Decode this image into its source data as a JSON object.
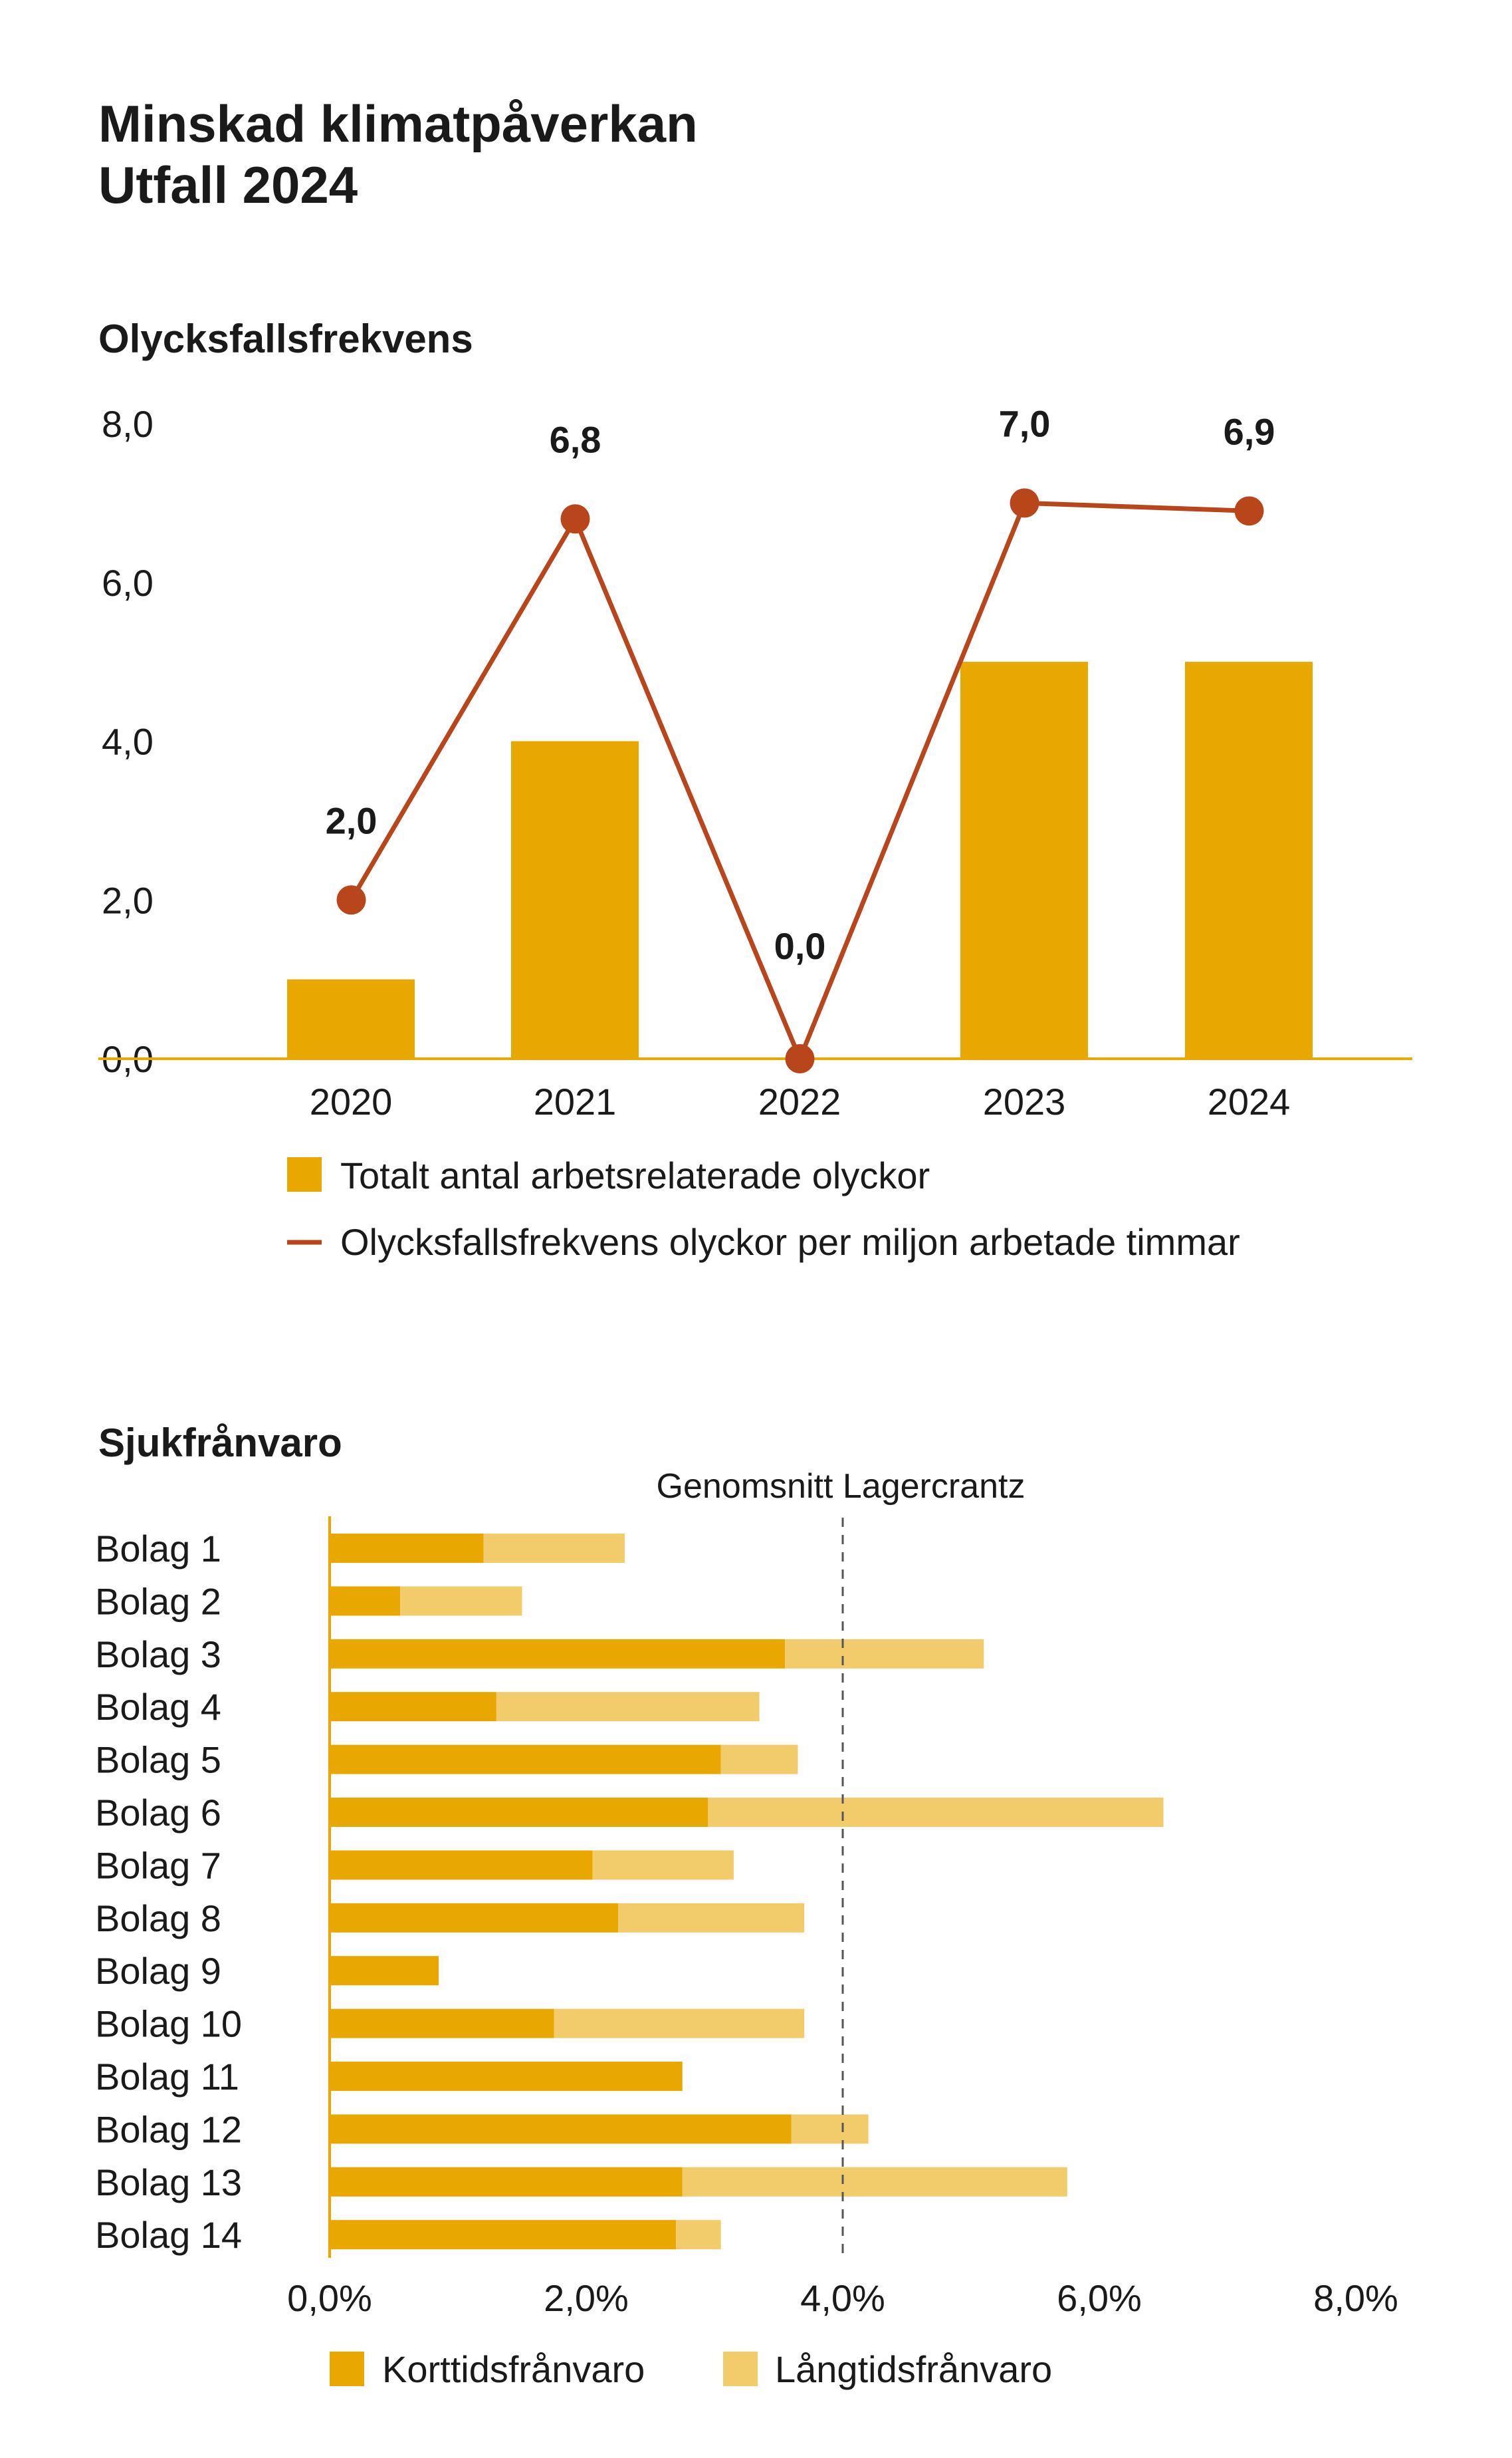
{
  "header": {
    "title_line1": "Minskad klimatpåverkan",
    "title_line2": "Utfall 2024"
  },
  "colors": {
    "bar": "#E8A800",
    "bar_light": "#F2CC6A",
    "line": "#B8461A",
    "axis": "#E8A800",
    "refline": "#555555"
  },
  "chart_data": [
    {
      "type": "bar",
      "title": "Olycksfallsfrekvens",
      "categories": [
        "2020",
        "2021",
        "2022",
        "2023",
        "2024"
      ],
      "ylim": [
        0,
        8
      ],
      "yticks": [
        "0,0",
        "2,0",
        "4,0",
        "6,0",
        "8,0"
      ],
      "ytick_values": [
        0,
        2,
        4,
        6,
        8
      ],
      "grid": false,
      "legend_position": "bottom",
      "series": [
        {
          "name": "Totalt antal arbetsrelaterade olyckor",
          "type": "bar",
          "values": [
            1.0,
            4.0,
            0.0,
            5.0,
            5.0
          ]
        },
        {
          "name": "Olycksfallsfrekvens olyckor per miljon arbetade timmar",
          "type": "line",
          "values": [
            2.0,
            6.8,
            0.0,
            7.0,
            6.9
          ],
          "labels": [
            "2,0",
            "6,8",
            "0,0",
            "7,0",
            "6,9"
          ]
        }
      ]
    },
    {
      "type": "bar",
      "orientation": "horizontal",
      "stacked": true,
      "title": "Sjukfrånvaro",
      "categories": [
        "Bolag 1",
        "Bolag 2",
        "Bolag 3",
        "Bolag 4",
        "Bolag 5",
        "Bolag 6",
        "Bolag 7",
        "Bolag 8",
        "Bolag 9",
        "Bolag 10",
        "Bolag 11",
        "Bolag 12",
        "Bolag 13",
        "Bolag 14"
      ],
      "xlim": [
        0,
        8
      ],
      "xticks": [
        "0,0%",
        "2,0%",
        "4,0%",
        "6,0%",
        "8,0%"
      ],
      "xtick_values": [
        0,
        2,
        4,
        6,
        8
      ],
      "reference_line": {
        "label": "Genomsnitt Lagercrantz",
        "value": 4.0
      },
      "legend_position": "bottom",
      "series": [
        {
          "name": "Korttidsfrånvaro",
          "values": [
            1.2,
            0.55,
            3.55,
            1.3,
            3.05,
            2.95,
            2.05,
            2.25,
            0.85,
            1.75,
            2.75,
            3.6,
            2.75,
            2.7
          ]
        },
        {
          "name": "Långtidsfrånvaro",
          "values": [
            1.1,
            0.95,
            1.55,
            2.05,
            0.6,
            3.55,
            1.1,
            1.45,
            0.0,
            1.95,
            0.0,
            0.6,
            3.0,
            0.35
          ]
        }
      ]
    }
  ]
}
